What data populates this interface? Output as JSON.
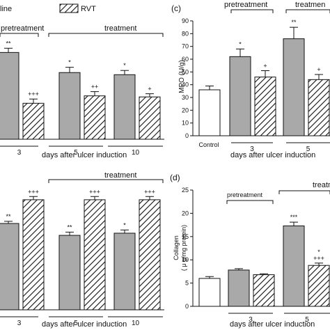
{
  "legend": {
    "saline_label": "line",
    "rvt_label": "RVT"
  },
  "chart_data": [
    {
      "id": "top-left",
      "type": "bar",
      "title": "",
      "xlabel": "days after ulcer induction",
      "ylabel": "",
      "ylim": [
        0,
        100
      ],
      "groups": [
        "3",
        "5",
        "10"
      ],
      "series": [
        {
          "name": "",
          "values": [
            82,
            63,
            61
          ],
          "errors": [
            4,
            5,
            4
          ],
          "marks": [
            "**",
            "*",
            "*"
          ]
        },
        {
          "name": "",
          "values": [
            34,
            41,
            40
          ],
          "errors": [
            4,
            4,
            3
          ],
          "marks": [
            "+++",
            "++",
            "+"
          ]
        }
      ],
      "brackets": {
        "pretreatment": "pretreatment",
        "treatment": "treatment"
      }
    },
    {
      "id": "bottom-left",
      "type": "bar",
      "title": "",
      "xlabel": "days after ulcer induction",
      "ylabel": "",
      "ylim": [
        0,
        100
      ],
      "groups": [
        "3",
        "5",
        "10"
      ],
      "series": [
        {
          "name": "",
          "values": [
            80,
            69,
            71
          ],
          "errors": [
            2,
            3,
            3
          ],
          "marks": [
            "**",
            "**",
            "*"
          ]
        },
        {
          "name": "",
          "values": [
            121,
            120,
            117
          ],
          "errors": [
            2,
            2,
            2
          ],
          "marks": [
            "+++",
            "+++",
            "+++"
          ]
        }
      ],
      "brackets": {
        "treatment": "treatment"
      }
    },
    {
      "id": "c",
      "panel_label": "(c)",
      "type": "bar",
      "title": "",
      "xlabel": "days after ulcer induction",
      "ylabel": "MPO (U/g)",
      "ylim": [
        0,
        90
      ],
      "yticks": [
        0,
        10,
        20,
        30,
        40,
        50,
        60,
        70,
        80,
        90
      ],
      "control": {
        "label": "Control",
        "value": 36,
        "error": 3
      },
      "groups": [
        "3",
        "5"
      ],
      "series": [
        {
          "name": "",
          "values": [
            62,
            76
          ],
          "errors": [
            6,
            9
          ],
          "marks": [
            "*",
            "**"
          ]
        },
        {
          "name": "",
          "values": [
            46,
            44
          ],
          "errors": [
            5,
            4
          ],
          "marks": [
            "+",
            "+"
          ]
        }
      ],
      "brackets": {
        "pretreatment": "pretreatment",
        "treatment": "treatmen"
      }
    },
    {
      "id": "d",
      "panel_label": "(d)",
      "type": "bar",
      "title": "",
      "xlabel": "days after ulcer induction",
      "ylabel_line1": "Collagen",
      "ylabel_line2": "( μ g/mg protein)",
      "ylim": [
        0,
        25
      ],
      "yticks": [
        0,
        5,
        10,
        15,
        20,
        25
      ],
      "control": {
        "label": "",
        "value": 6.0,
        "error": 0.4
      },
      "groups": [
        "3",
        "5"
      ],
      "series": [
        {
          "name": "",
          "values": [
            7.8,
            17.3
          ],
          "errors": [
            0.3,
            0.8
          ],
          "marks": [
            "",
            "***"
          ]
        },
        {
          "name": "",
          "values": [
            6.8,
            8.8
          ],
          "errors": [
            0.2,
            0.5
          ],
          "marks": [
            "",
            "*\n+++"
          ]
        }
      ],
      "brackets": {
        "pretreatment": "pretreatment",
        "treatment": "treatm"
      }
    }
  ]
}
